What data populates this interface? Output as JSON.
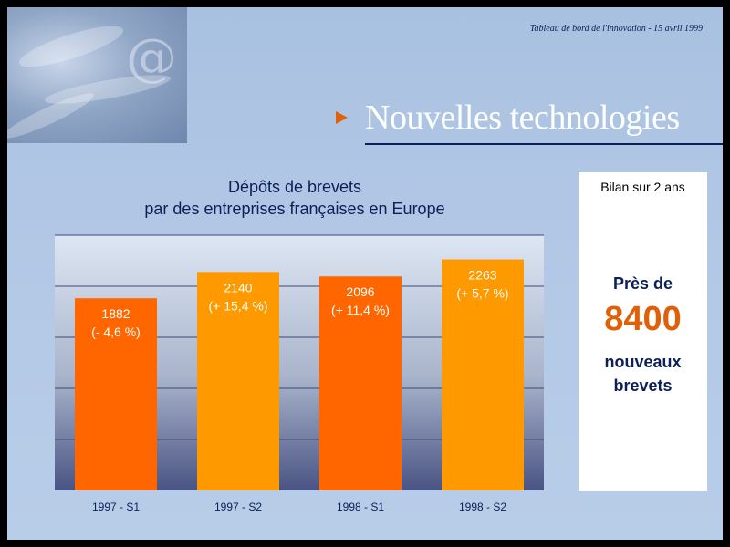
{
  "header": {
    "text": "Tableau de bord de l'innovation - 15 avril 1999"
  },
  "title": {
    "text": "Nouvelles technologies"
  },
  "summary": {
    "heading": "Bilan sur 2 ans",
    "pre": "Près de",
    "number": "8400",
    "post_lines": [
      "nouveaux",
      "brevets"
    ]
  },
  "colors": {
    "bar_dark": "#ff6600",
    "bar_light": "#ff9900",
    "navy": "#0c1f57",
    "accent": "#e0600a"
  },
  "icons": {
    "corner": "at-sign-icon",
    "title_bullet": "arrow-right-icon"
  },
  "chart_data": {
    "type": "bar",
    "title_lines": [
      "Dépôts de brevets",
      "par des entreprises françaises en Europe"
    ],
    "categories": [
      "1997 - S1",
      "1997 - S2",
      "1998 - S1",
      "1998 - S2"
    ],
    "values": [
      1882,
      2140,
      2096,
      2263
    ],
    "changes": [
      "(- 4,6 %)",
      "(+ 15,4 %)",
      "(+ 11,4 %)",
      "(+ 5,7 %)"
    ],
    "ylim": [
      0,
      2500
    ],
    "grid": true,
    "xlabel": "",
    "ylabel": ""
  }
}
